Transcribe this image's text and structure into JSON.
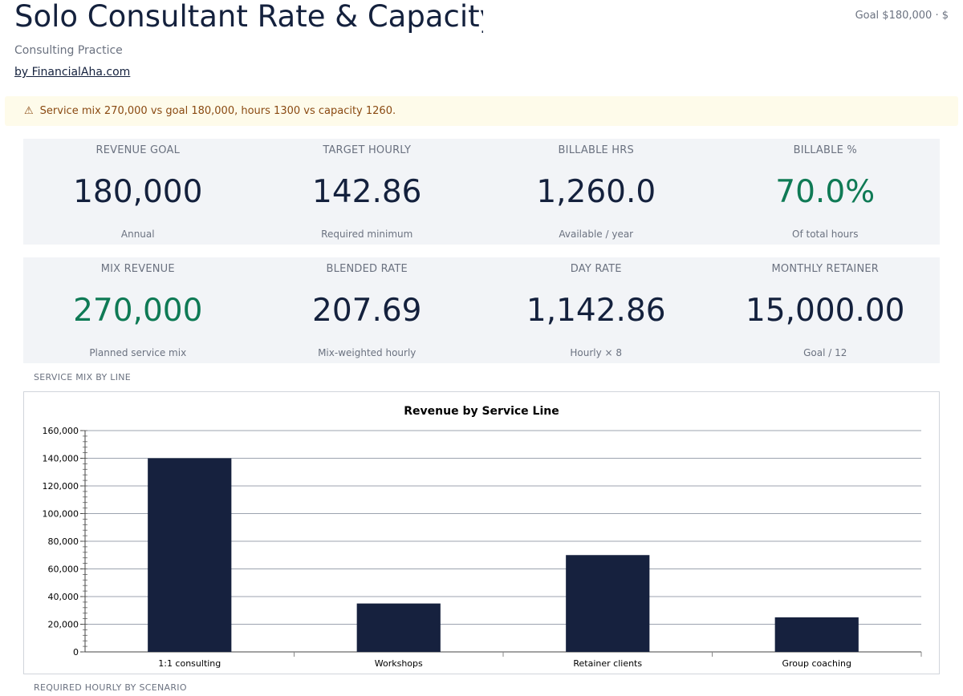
{
  "header": {
    "title": "Solo Consultant Rate & Capacity",
    "goal_summary": "Goal $180,000 · $",
    "subtitle": "Consulting Practice",
    "byline": "by FinancialAha.com"
  },
  "warning": {
    "icon": "warning-icon",
    "text": "Service mix 270,000 vs goal 180,000, hours 1300 vs capacity 1260."
  },
  "kpis_row1": [
    {
      "label": "REVENUE GOAL",
      "value": "180,000",
      "sub": "Annual"
    },
    {
      "label": "TARGET HOURLY",
      "value": "142.86",
      "sub": "Required minimum"
    },
    {
      "label": "BILLABLE HRS",
      "value": "1,260.0",
      "sub": "Available / year"
    },
    {
      "label": "BILLABLE %",
      "value": "70.0%",
      "sub": "Of total hours"
    }
  ],
  "kpis_row2": [
    {
      "label": "MIX REVENUE",
      "value": "270,000",
      "sub": "Planned service mix"
    },
    {
      "label": "BLENDED RATE",
      "value": "207.69",
      "sub": "Mix-weighted hourly"
    },
    {
      "label": "DAY RATE",
      "value": "1,142.86",
      "sub": "Hourly × 8"
    },
    {
      "label": "MONTHLY RETAINER",
      "value": "15,000.00",
      "sub": "Goal / 12"
    }
  ],
  "sections": {
    "service_mix": "SERVICE MIX BY LINE",
    "required_hourly": "REQUIRED HOURLY BY SCENARIO"
  },
  "colors": {
    "navy": "#14213d",
    "green": "#0f7a55",
    "bar": "#16213e"
  },
  "chart_data": {
    "type": "bar",
    "title": "Revenue by Service Line",
    "categories": [
      "1:1 consulting",
      "Workshops",
      "Retainer clients",
      "Group coaching"
    ],
    "values": [
      140000,
      35000,
      70000,
      25000
    ],
    "ylim": [
      0,
      160000
    ],
    "yticks": [
      0,
      20000,
      40000,
      60000,
      80000,
      100000,
      120000,
      140000,
      160000
    ],
    "ytick_labels": [
      "0",
      "20,000",
      "40,000",
      "60,000",
      "80,000",
      "100,000",
      "120,000",
      "140,000",
      "160,000"
    ],
    "grid": true,
    "legend": "none"
  }
}
